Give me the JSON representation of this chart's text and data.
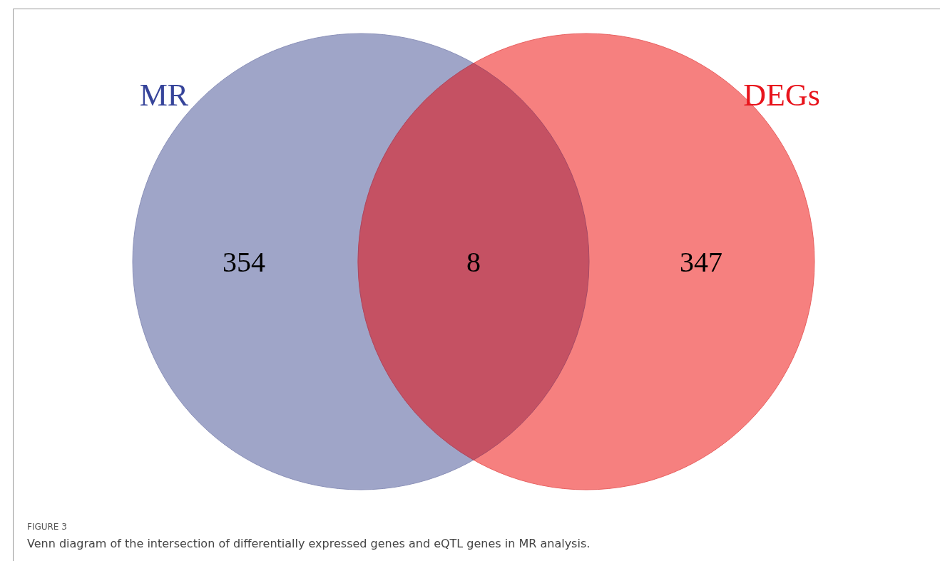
{
  "chart_data": {
    "type": "other",
    "categories": [
      "MR",
      null,
      "DEGs"
    ],
    "values": [
      354,
      8,
      347
    ],
    "colors": [
      "#9fa5c8",
      "#c55163",
      "#f6807f"
    ],
    "data_labels": true,
    "annotations": [
      "FIGURE 3",
      "Venn diagram of the intersection of differentially expressed genes and eQTL genes in MR analysis."
    ]
  }
}
